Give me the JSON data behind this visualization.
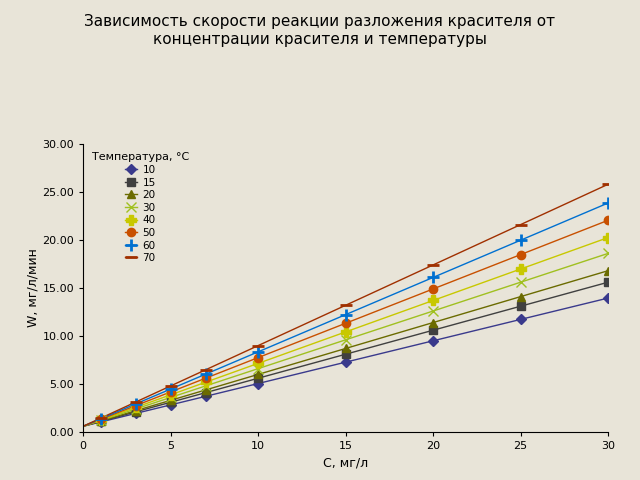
{
  "title": "Зависимость скорости реакции разложения красителя от\nконцентрации красителя и температуры",
  "xlabel": "С, мг/л",
  "ylabel": "W, мг/л/мин",
  "legend_title": "Температура, °C",
  "background_color": "#e8e4d8",
  "xlim": [
    0,
    30
  ],
  "ylim": [
    0,
    30
  ],
  "xticks": [
    0,
    5,
    10,
    15,
    20,
    25,
    30
  ],
  "yticks": [
    0.0,
    5.0,
    10.0,
    15.0,
    20.0,
    25.0,
    30.0
  ],
  "series": [
    {
      "label": "10",
      "slope": 0.445,
      "intercept": 0.6,
      "color": "#3a3a8c",
      "marker": "D",
      "markersize": 5,
      "linewidth": 1.0,
      "x_points": [
        1,
        3,
        5,
        7,
        10,
        15,
        20,
        25,
        30
      ]
    },
    {
      "label": "15",
      "slope": 0.5,
      "intercept": 0.6,
      "color": "#404040",
      "marker": "s",
      "markersize": 6,
      "linewidth": 1.0,
      "x_points": [
        1,
        3,
        5,
        7,
        10,
        15,
        20,
        25,
        30
      ]
    },
    {
      "label": "20",
      "slope": 0.54,
      "intercept": 0.6,
      "color": "#6b6b00",
      "marker": "^",
      "markersize": 6,
      "linewidth": 1.0,
      "x_points": [
        1,
        3,
        5,
        7,
        10,
        15,
        20,
        25,
        30
      ]
    },
    {
      "label": "30",
      "slope": 0.6,
      "intercept": 0.6,
      "color": "#a0c020",
      "marker": "x",
      "markersize": 7,
      "linewidth": 1.0,
      "x_points": [
        1,
        3,
        5,
        7,
        10,
        15,
        20,
        25,
        30
      ]
    },
    {
      "label": "40",
      "slope": 0.655,
      "intercept": 0.6,
      "color": "#c8c800",
      "marker": "P",
      "markersize": 7,
      "linewidth": 1.0,
      "x_points": [
        1,
        3,
        5,
        7,
        10,
        15,
        20,
        25,
        30
      ]
    },
    {
      "label": "50",
      "slope": 0.715,
      "intercept": 0.6,
      "color": "#c85000",
      "marker": "o",
      "markersize": 6,
      "linewidth": 1.0,
      "x_points": [
        1,
        3,
        5,
        7,
        10,
        15,
        20,
        25,
        30
      ]
    },
    {
      "label": "60",
      "slope": 0.775,
      "intercept": 0.6,
      "color": "#0070d0",
      "marker": "+",
      "markersize": 8,
      "linewidth": 1.0,
      "x_points": [
        1,
        3,
        5,
        7,
        10,
        15,
        20,
        25,
        30
      ]
    },
    {
      "label": "70",
      "slope": 0.84,
      "intercept": 0.6,
      "color": "#a03000",
      "marker": "_",
      "markersize": 8,
      "linewidth": 1.0,
      "x_points": [
        1,
        3,
        5,
        7,
        10,
        15,
        20,
        25,
        30
      ]
    }
  ]
}
